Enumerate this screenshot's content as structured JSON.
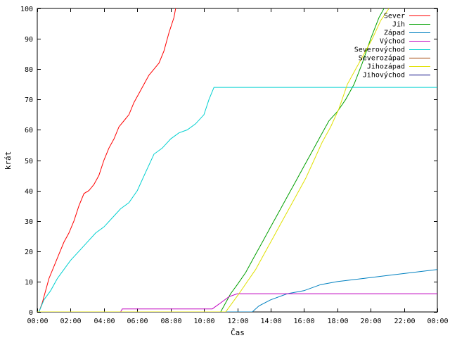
{
  "chart_data": {
    "type": "line",
    "title": "",
    "xlabel": "Čas",
    "ylabel": "krát",
    "xlim": [
      0,
      24
    ],
    "ylim": [
      0,
      100
    ],
    "x_ticks": [
      "00:00",
      "02:00",
      "04:00",
      "06:00",
      "08:00",
      "10:00",
      "12:00",
      "14:00",
      "16:00",
      "18:00",
      "20:00",
      "22:00",
      "00:00"
    ],
    "y_ticks": [
      "0",
      "10",
      "20",
      "30",
      "40",
      "50",
      "60",
      "70",
      "80",
      "90",
      "100"
    ],
    "grid": false,
    "legend_position": "top-right",
    "series": [
      {
        "name": "Sever",
        "color": "#ff0000",
        "x": [
          0.1,
          0.3,
          0.5,
          0.7,
          1.0,
          1.3,
          1.6,
          1.9,
          2.2,
          2.5,
          2.8,
          3.1,
          3.4,
          3.7,
          4.0,
          4.3,
          4.6,
          4.9,
          5.2,
          5.5,
          5.8,
          6.1,
          6.4,
          6.7,
          7.0,
          7.3,
          7.6,
          7.9,
          8.2,
          8.3
        ],
        "y": [
          0,
          3,
          7,
          11,
          15,
          19,
          23,
          26,
          30,
          35,
          39,
          40,
          42,
          45,
          50,
          54,
          57,
          61,
          63,
          65,
          69,
          72,
          75,
          78,
          80,
          82,
          86,
          92,
          97,
          100
        ]
      },
      {
        "name": "Jih",
        "color": "#00a000",
        "x": [
          0,
          11.0,
          11.3,
          11.6,
          12.0,
          12.5,
          13.0,
          13.5,
          14.0,
          14.5,
          15.0,
          15.5,
          16.0,
          16.5,
          17.0,
          17.5,
          18.0,
          18.5,
          19.0,
          19.5,
          20.0,
          20.5,
          20.8
        ],
        "y": [
          0,
          0,
          3,
          6,
          9,
          13,
          18,
          23,
          28,
          33,
          38,
          43,
          48,
          53,
          58,
          63,
          66,
          70,
          75,
          82,
          90,
          97,
          100
        ]
      },
      {
        "name": "Západ",
        "color": "#0080c0",
        "x": [
          0,
          12.9,
          13.3,
          14.0,
          15.0,
          16.0,
          17.0,
          18.0,
          19.5,
          21.0,
          22.5,
          24.0
        ],
        "y": [
          0,
          0,
          2,
          4,
          6,
          7,
          9,
          10,
          11,
          12,
          13,
          14
        ]
      },
      {
        "name": "Východ",
        "color": "#c000c0",
        "x": [
          0,
          5.0,
          5.1,
          6.0,
          8.0,
          10.5,
          11.0,
          11.5,
          12.0,
          24.0
        ],
        "y": [
          0,
          0,
          1,
          1,
          1,
          1,
          3,
          5,
          6,
          6
        ]
      },
      {
        "name": "Severovýchod",
        "color": "#00d0d0",
        "x": [
          0.1,
          0.4,
          0.8,
          1.2,
          1.6,
          2.0,
          2.5,
          3.0,
          3.5,
          4.0,
          4.5,
          5.0,
          5.5,
          6.0,
          6.5,
          7.0,
          7.5,
          8.0,
          8.5,
          9.0,
          9.5,
          10.0,
          10.3,
          10.6,
          24.0
        ],
        "y": [
          0,
          4,
          7,
          11,
          14,
          17,
          20,
          23,
          26,
          28,
          31,
          34,
          36,
          40,
          46,
          52,
          54,
          57,
          59,
          60,
          62,
          65,
          70,
          74,
          74
        ]
      },
      {
        "name": "Severozápad",
        "color": "#a04000",
        "x": [],
        "y": []
      },
      {
        "name": "Jihozápad",
        "color": "#e0e000",
        "x": [
          0,
          11.3,
          11.7,
          12.1,
          12.6,
          13.1,
          13.6,
          14.1,
          14.6,
          15.1,
          15.6,
          16.1,
          16.6,
          17.1,
          17.6,
          18.1,
          18.6,
          19.1,
          19.6,
          20.1,
          20.6,
          21.1
        ],
        "y": [
          0,
          0,
          3,
          6,
          10,
          14,
          19,
          24,
          29,
          34,
          39,
          44,
          50,
          56,
          61,
          67,
          75,
          80,
          85,
          90,
          96,
          100
        ]
      },
      {
        "name": "Jihovýchod",
        "color": "#000080",
        "x": [],
        "y": []
      }
    ]
  }
}
